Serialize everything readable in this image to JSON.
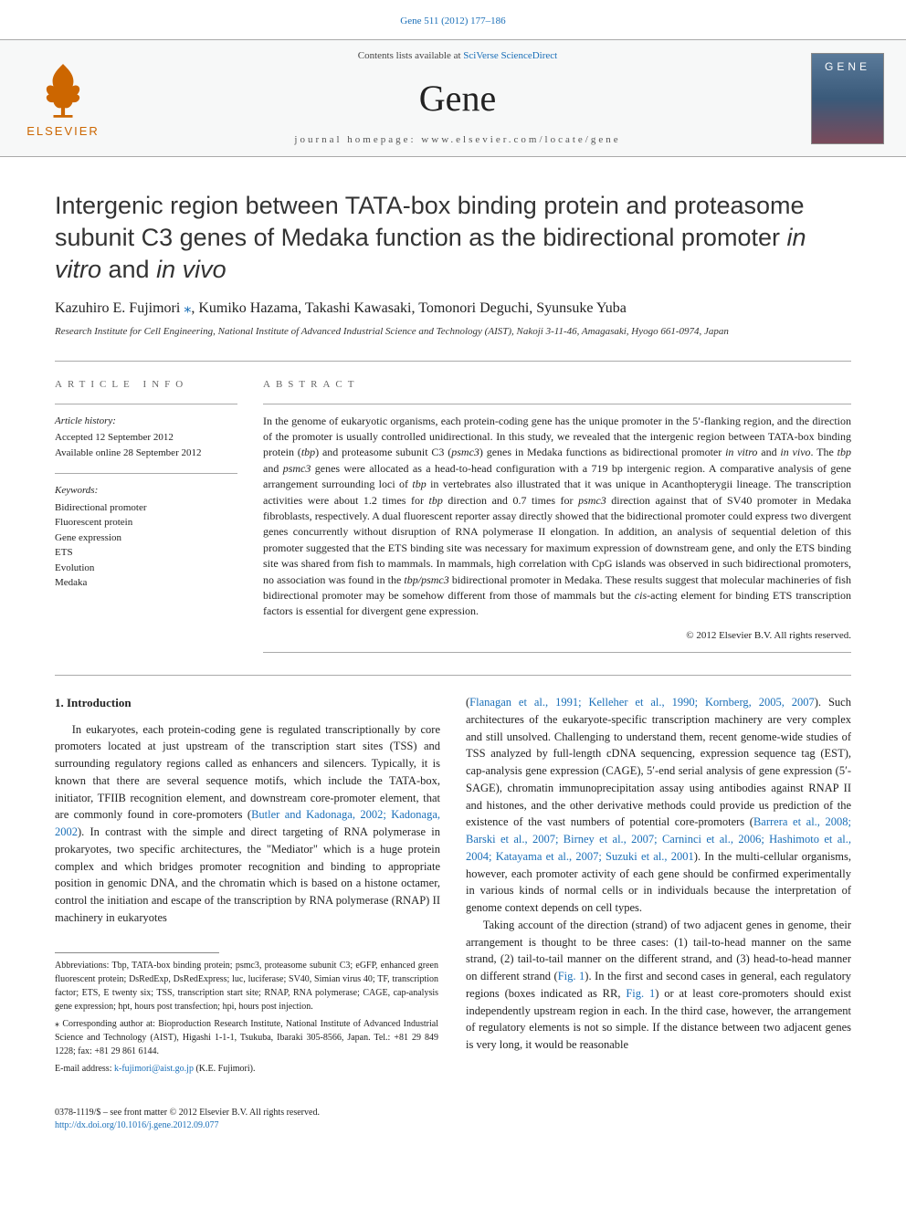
{
  "top_citation": "Gene 511 (2012) 177–186",
  "header": {
    "contents_prefix": "Contents lists available at ",
    "contents_link": "SciVerse ScienceDirect",
    "journal_name": "Gene",
    "homepage": "journal homepage: www.elsevier.com/locate/gene",
    "publisher": "ELSEVIER"
  },
  "title_parts": {
    "p1": "Intergenic region between TATA-box binding protein and proteasome subunit C3 genes of Medaka function as the bidirectional promoter ",
    "i1": "in vitro",
    "p2": " and ",
    "i2": "in vivo"
  },
  "authors_line": "Kazuhiro E. Fujimori ",
  "author_star": "⁎",
  "authors_rest": ", Kumiko Hazama, Takashi Kawasaki, Tomonori Deguchi, Syunsuke Yuba",
  "affiliation": "Research Institute for Cell Engineering, National Institute of Advanced Industrial Science and Technology (AIST), Nakoji 3-11-46, Amagasaki, Hyogo 661-0974, Japan",
  "info": {
    "heading": "ARTICLE INFO",
    "history_head": "Article history:",
    "history_l1": "Accepted 12 September 2012",
    "history_l2": "Available online 28 September 2012",
    "keywords_head": "Keywords:",
    "kw": [
      "Bidirectional promoter",
      "Fluorescent protein",
      "Gene expression",
      "ETS",
      "Evolution",
      "Medaka"
    ]
  },
  "abstract": {
    "heading": "ABSTRACT",
    "text_parts": [
      {
        "t": "plain",
        "v": "In the genome of eukaryotic organisms, each protein-coding gene has the unique promoter in the 5′-flanking region, and the direction of the promoter is usually controlled unidirectional. In this study, we revealed that the intergenic region between TATA-box binding protein ("
      },
      {
        "t": "italic",
        "v": "tbp"
      },
      {
        "t": "plain",
        "v": ") and proteasome subunit C3 ("
      },
      {
        "t": "italic",
        "v": "psmc3"
      },
      {
        "t": "plain",
        "v": ") genes in Medaka functions as bidirectional promoter "
      },
      {
        "t": "italic",
        "v": "in vitro"
      },
      {
        "t": "plain",
        "v": " and "
      },
      {
        "t": "italic",
        "v": "in vivo"
      },
      {
        "t": "plain",
        "v": ". The "
      },
      {
        "t": "italic",
        "v": "tbp"
      },
      {
        "t": "plain",
        "v": " and "
      },
      {
        "t": "italic",
        "v": "psmc3"
      },
      {
        "t": "plain",
        "v": " genes were allocated as a head-to-head configuration with a 719 bp intergenic region. A comparative analysis of gene arrangement surrounding loci of "
      },
      {
        "t": "italic",
        "v": "tbp"
      },
      {
        "t": "plain",
        "v": " in vertebrates also illustrated that it was unique in Acanthopterygii lineage. The transcription activities were about 1.2 times for "
      },
      {
        "t": "italic",
        "v": "tbp"
      },
      {
        "t": "plain",
        "v": " direction and 0.7 times for "
      },
      {
        "t": "italic",
        "v": "psmc3"
      },
      {
        "t": "plain",
        "v": " direction against that of SV40 promoter in Medaka fibroblasts, respectively. A dual fluorescent reporter assay directly showed that the bidirectional promoter could express two divergent genes concurrently without disruption of RNA polymerase II elongation. In addition, an analysis of sequential deletion of this promoter suggested that the ETS binding site was necessary for maximum expression of downstream gene, and only the ETS binding site was shared from fish to mammals. In mammals, high correlation with CpG islands was observed in such bidirectional promoters, no association was found in the "
      },
      {
        "t": "italic",
        "v": "tbp/psmc3"
      },
      {
        "t": "plain",
        "v": " bidirectional promoter in Medaka. These results suggest that molecular machineries of fish bidirectional promoter may be somehow different from those of mammals but the "
      },
      {
        "t": "italic",
        "v": "cis"
      },
      {
        "t": "plain",
        "v": "-acting element for binding ETS transcription factors is essential for divergent gene expression."
      }
    ],
    "copyright": "© 2012 Elsevier B.V. All rights reserved."
  },
  "body": {
    "section_heading": "1. Introduction",
    "col1_p1": "In eukaryotes, each protein-coding gene is regulated transcriptionally by core promoters located at just upstream of the transcription start sites (TSS) and surrounding regulatory regions called as enhancers and silencers. Typically, it is known that there are several sequence motifs, which include the TATA-box, initiator, TFIIB recognition element, and downstream core-promoter element, that are commonly found in core-promoters (",
    "col1_link1": "Butler and Kadonaga, 2002; Kadonaga, 2002",
    "col1_p1b": "). In contrast with the simple and direct targeting of RNA polymerase in prokaryotes, two specific architectures, the \"Mediator\" which is a huge protein complex and which bridges promoter recognition and binding to appropriate position in genomic DNA, and the chromatin which is based on a histone octamer, control the initiation and escape of the transcription by RNA polymerase (RNAP) II machinery in eukaryotes",
    "col2_p1": "(",
    "col2_link1": "Flanagan et al., 1991; Kelleher et al., 1990; Kornberg, 2005, 2007",
    "col2_p1b": "). Such architectures of the eukaryote-specific transcription machinery are very complex and still unsolved. Challenging to understand them, recent genome-wide studies of TSS analyzed by full-length cDNA sequencing, expression sequence tag (EST), cap-analysis gene expression (CAGE), 5′-end serial analysis of gene expression (5′-SAGE), chromatin immunoprecipitation assay using antibodies against RNAP II and histones, and the other derivative methods could provide us prediction of the existence of the vast numbers of potential core-promoters (",
    "col2_link2": "Barrera et al., 2008; Barski et al., 2007; Birney et al., 2007; Carninci et al., 2006; Hashimoto et al., 2004; Katayama et al., 2007; Suzuki et al., 2001",
    "col2_p1c": "). In the multi-cellular organisms, however, each promoter activity of each gene should be confirmed experimentally in various kinds of normal cells or in individuals because the interpretation of genome context depends on cell types.",
    "col2_p2a": "Taking account of the direction (strand) of two adjacent genes in genome, their arrangement is thought to be three cases: (1) tail-to-head manner on the same strand, (2) tail-to-tail manner on the different strand, and (3) head-to-head manner on different strand (",
    "col2_fig1a": "Fig. 1",
    "col2_p2b": "). In the first and second cases in general, each regulatory regions (boxes indicated as RR, ",
    "col2_fig1b": "Fig. 1",
    "col2_p2c": ") or at least core-promoters should exist independently upstream region in each. In the third case, however, the arrangement of regulatory elements is not so simple. If the distance between two adjacent genes is very long, it would be reasonable"
  },
  "footer": {
    "abbrev_head": "Abbreviations: ",
    "abbrev_body": "Tbp, TATA-box binding protein; psmc3, proteasome subunit C3; eGFP, enhanced green fluorescent protein; DsRedExp, DsRedExpress; luc, luciferase; SV40, Simian virus 40; TF, transcription factor; ETS, E twenty six; TSS, transcription start site; RNAP, RNA polymerase; CAGE, cap-analysis gene expression; hpt, hours post transfection; hpi, hours post injection.",
    "corr_marker": "⁎ ",
    "corr_text": "Corresponding author at: Bioproduction Research Institute, National Institute of Advanced Industrial Science and Technology (AIST), Higashi 1-1-1, Tsukuba, Ibaraki 305-8566, Japan. Tel.: +81 29 849 1228; fax: +81 29 861 6144.",
    "email_head": "E-mail address: ",
    "email_link": "k-fujimori@aist.go.jp",
    "email_tail": " (K.E. Fujimori).",
    "issn_line": "0378-1119/$ – see front matter © 2012 Elsevier B.V. All rights reserved.",
    "doi": "http://dx.doi.org/10.1016/j.gene.2012.09.077"
  },
  "colors": {
    "link": "#1a6fb8",
    "elsevier_orange": "#cc6600",
    "rule": "#aaaaaa",
    "text": "#222222"
  }
}
